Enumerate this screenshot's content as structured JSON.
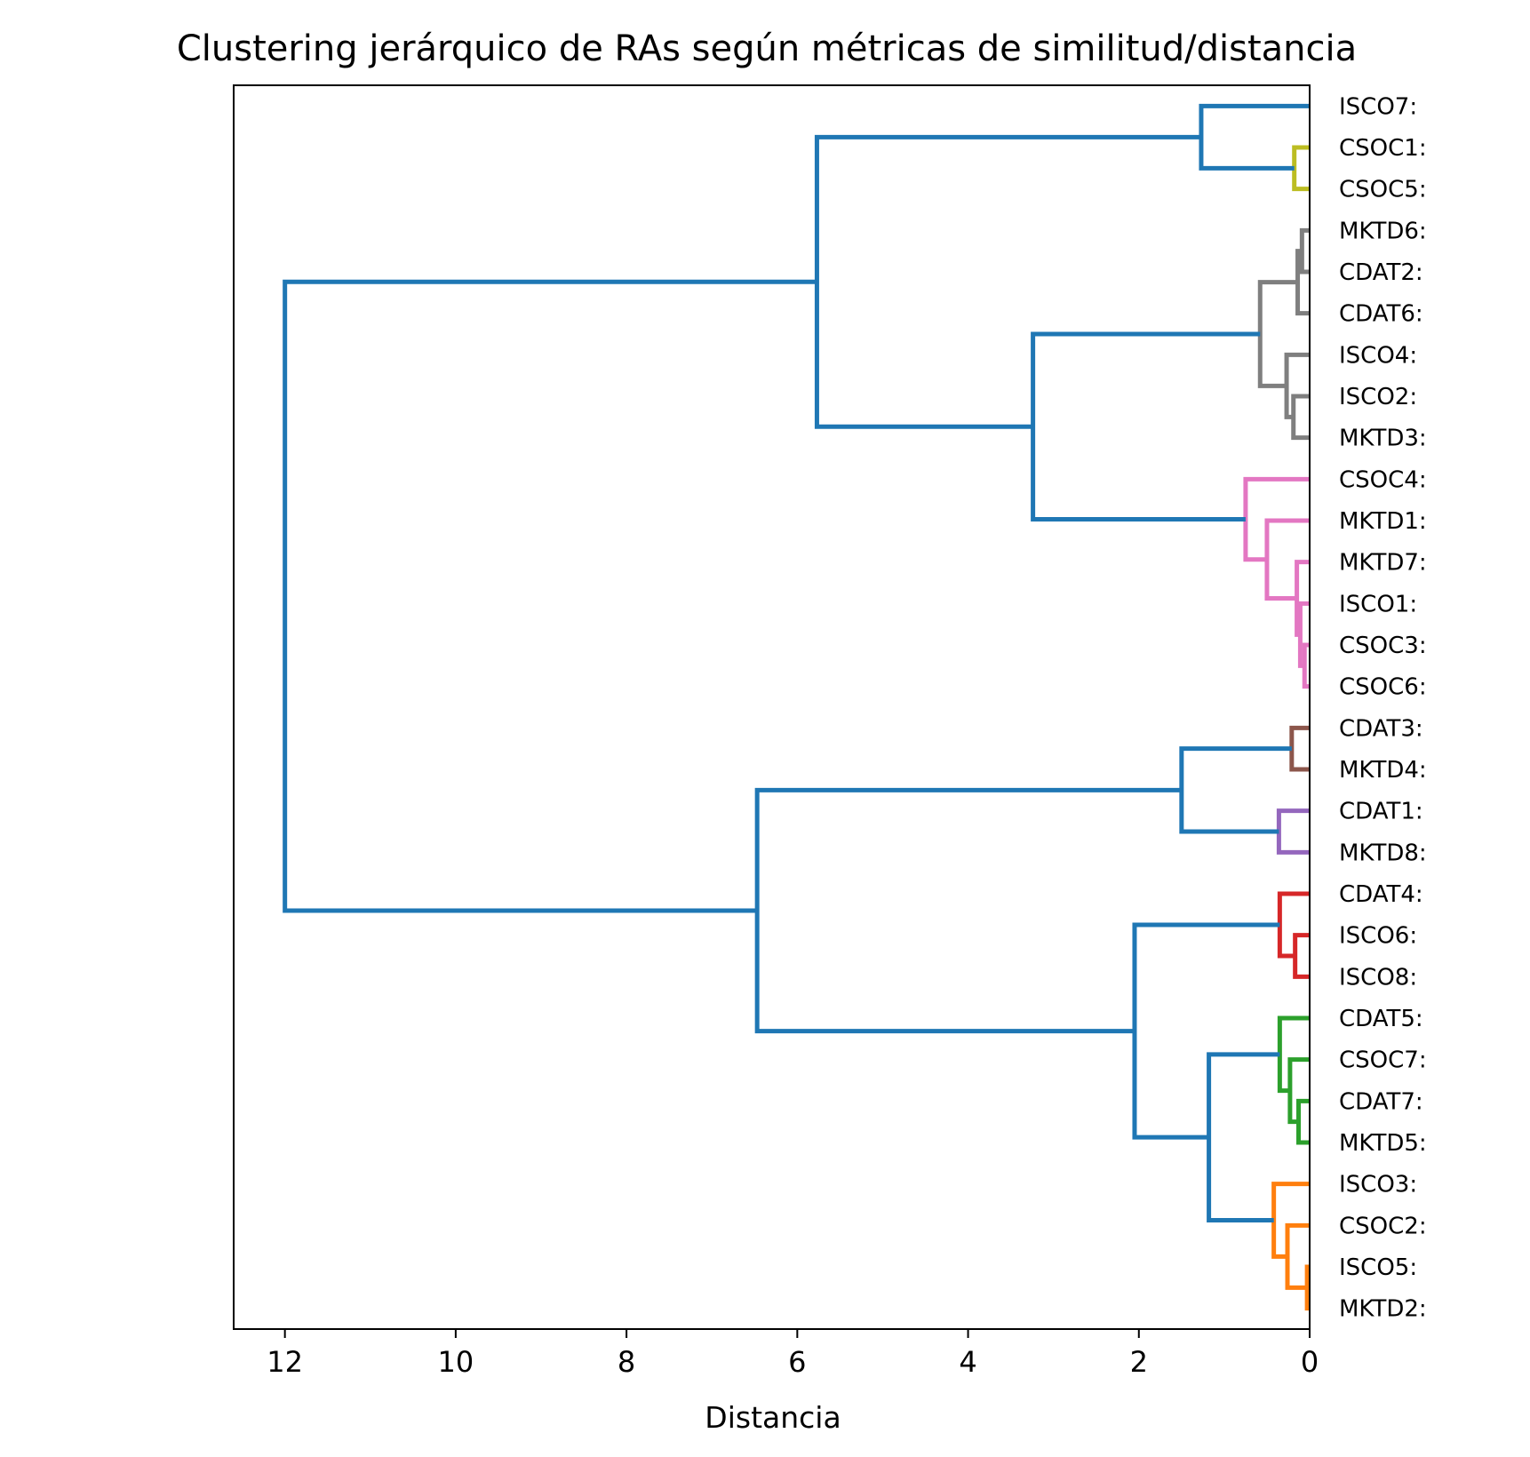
{
  "chart_data": {
    "type": "dendrogram",
    "title": "Clustering jerárquico de RAs según métricas de similitud/distancia",
    "xlabel": "Distancia",
    "xlim": [
      12.6,
      0
    ],
    "xticks": [
      12,
      10,
      8,
      6,
      4,
      2,
      0
    ],
    "orientation": "left",
    "grid": false,
    "leaves": [
      "ISCO7:",
      "CSOC1:",
      "CSOC5:",
      "MKTD6:",
      "CDAT2:",
      "CDAT6:",
      "ISCO4:",
      "ISCO2:",
      "MKTD3:",
      "CSOC4:",
      "MKTD1:",
      "MKTD7:",
      "ISCO1:",
      "CSOC3:",
      "CSOC6:",
      "CDAT3:",
      "MKTD4:",
      "CDAT1:",
      "MKTD8:",
      "CDAT4:",
      "ISCO6:",
      "ISCO8:",
      "CDAT5:",
      "CSOC7:",
      "CDAT7:",
      "MKTD5:",
      "ISCO3:",
      "CSOC2:",
      "ISCO5:",
      "MKTD2:"
    ],
    "links": [
      {
        "i": 1,
        "j": 2,
        "d": 0.18,
        "color": "#bcbd22"
      },
      {
        "i": 0,
        "j": 30,
        "d": 1.27,
        "color": "#1f77b4"
      },
      {
        "i": 3,
        "j": 4,
        "d": 0.09,
        "color": "#7f7f7f"
      },
      {
        "i": 32,
        "j": 5,
        "d": 0.14,
        "color": "#7f7f7f"
      },
      {
        "i": 7,
        "j": 8,
        "d": 0.19,
        "color": "#7f7f7f"
      },
      {
        "i": 6,
        "j": 34,
        "d": 0.27,
        "color": "#7f7f7f"
      },
      {
        "i": 33,
        "j": 35,
        "d": 0.58,
        "color": "#7f7f7f"
      },
      {
        "i": 13,
        "j": 14,
        "d": 0.06,
        "color": "#e377c2"
      },
      {
        "i": 12,
        "j": 37,
        "d": 0.11,
        "color": "#e377c2"
      },
      {
        "i": 11,
        "j": 38,
        "d": 0.15,
        "color": "#e377c2"
      },
      {
        "i": 10,
        "j": 39,
        "d": 0.5,
        "color": "#e377c2"
      },
      {
        "i": 9,
        "j": 40,
        "d": 0.75,
        "color": "#e377c2"
      },
      {
        "i": 36,
        "j": 41,
        "d": 3.24,
        "color": "#1f77b4"
      },
      {
        "i": 31,
        "j": 42,
        "d": 5.77,
        "color": "#1f77b4"
      },
      {
        "i": 15,
        "j": 16,
        "d": 0.21,
        "color": "#8c564b"
      },
      {
        "i": 17,
        "j": 18,
        "d": 0.36,
        "color": "#9467bd"
      },
      {
        "i": 44,
        "j": 45,
        "d": 1.5,
        "color": "#1f77b4"
      },
      {
        "i": 20,
        "j": 21,
        "d": 0.17,
        "color": "#d62728"
      },
      {
        "i": 19,
        "j": 47,
        "d": 0.35,
        "color": "#d62728"
      },
      {
        "i": 24,
        "j": 25,
        "d": 0.13,
        "color": "#2ca02c"
      },
      {
        "i": 23,
        "j": 49,
        "d": 0.23,
        "color": "#2ca02c"
      },
      {
        "i": 22,
        "j": 50,
        "d": 0.35,
        "color": "#2ca02c"
      },
      {
        "i": 28,
        "j": 29,
        "d": 0.03,
        "color": "#ff7f0e"
      },
      {
        "i": 27,
        "j": 52,
        "d": 0.26,
        "color": "#ff7f0e"
      },
      {
        "i": 26,
        "j": 53,
        "d": 0.42,
        "color": "#ff7f0e"
      },
      {
        "i": 51,
        "j": 54,
        "d": 1.18,
        "color": "#1f77b4"
      },
      {
        "i": 48,
        "j": 55,
        "d": 2.05,
        "color": "#1f77b4"
      },
      {
        "i": 46,
        "j": 56,
        "d": 6.47,
        "color": "#1f77b4"
      },
      {
        "i": 43,
        "j": 57,
        "d": 12.0,
        "color": "#1f77b4"
      }
    ]
  }
}
